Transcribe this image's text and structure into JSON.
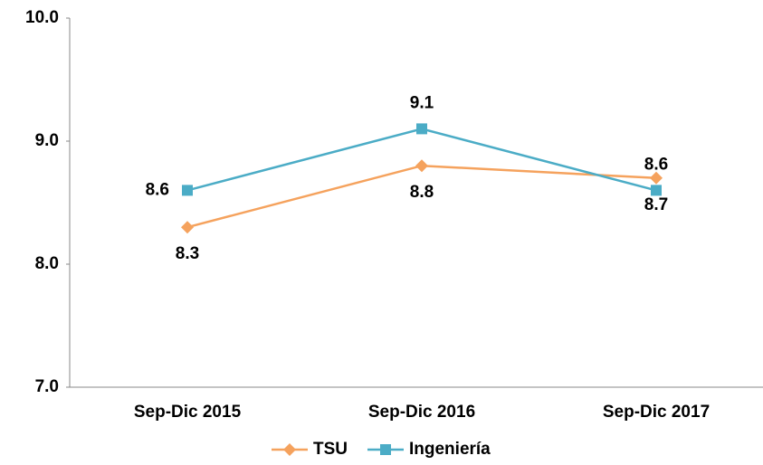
{
  "chart_data": {
    "type": "line",
    "categories": [
      "Sep-Dic 2015",
      "Sep-Dic 2016",
      "Sep-Dic 2017"
    ],
    "series": [
      {
        "name": "TSU",
        "color": "#f5a25d",
        "marker": "diamond",
        "values": [
          8.3,
          8.8,
          8.7
        ]
      },
      {
        "name": "Ingeniería",
        "color": "#4bacc6",
        "marker": "square",
        "values": [
          8.6,
          9.1,
          8.6
        ]
      }
    ],
    "ylim": [
      7,
      10
    ],
    "yticks": [
      {
        "value": 7,
        "label": "7.0"
      },
      {
        "value": 8,
        "label": "8.0"
      },
      {
        "value": 9,
        "label": "9.0"
      },
      {
        "value": 10,
        "label": "10.0"
      }
    ],
    "grid": false,
    "legend": "bottom"
  }
}
